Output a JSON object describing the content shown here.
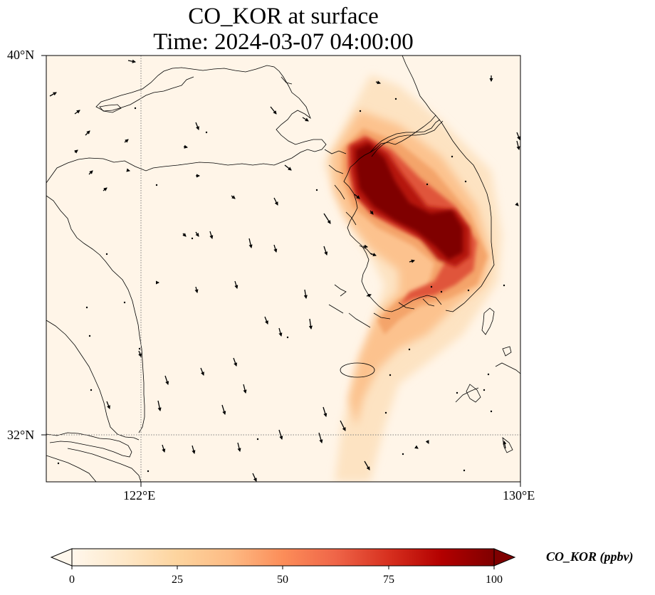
{
  "title": "CO_KOR at surface",
  "subtitle": "Time: 2024-03-07 04:00:00",
  "map": {
    "variable": "CO_KOR",
    "level": "surface",
    "time": "2024-03-07 04:00:00",
    "lat_ticks": [
      "40°N",
      "32°N"
    ],
    "lon_ticks": [
      "122°E",
      "130°E"
    ],
    "gridlines": "dotted at 122°E and 32°N",
    "background_color": "#fff5e8",
    "coastline_color": "#000000",
    "features": [
      "coastlines",
      "wind-vectors",
      "concentration-field"
    ]
  },
  "colorbar": {
    "label": "CO_KOR (ppbv)",
    "ticks": [
      "0",
      "25",
      "50",
      "75",
      "100"
    ],
    "min": 0,
    "max": 100,
    "extend": "both",
    "colormap": "OrRd",
    "colors": [
      "#fff7ec",
      "#fee8c8",
      "#fdd49e",
      "#fdbb84",
      "#fc8d59",
      "#ef6548",
      "#d7301f",
      "#b30000",
      "#7f0000"
    ]
  }
}
